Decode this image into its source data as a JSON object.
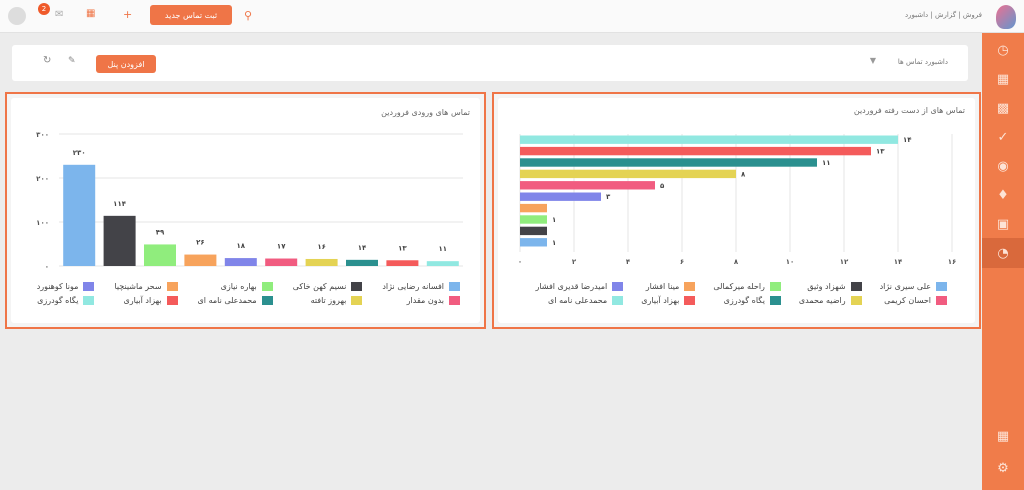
{
  "header": {
    "breadcrumb": "فروش | گزارش | داشبورد",
    "new_button": "ثبت تماس جدید",
    "notification_count": "2"
  },
  "toolbar": {
    "title": "داشبورد تماس ها",
    "add_panel": "افزودن پنل"
  },
  "sidebar": {
    "items": [
      "dashboard-icon",
      "calendar-icon",
      "contacts-icon",
      "handshake-icon",
      "globe-icon",
      "bell-icon",
      "calculator-icon",
      "reports-icon"
    ],
    "active": 7
  },
  "colors": {
    "accent": "#ef7547"
  },
  "chart_data": [
    {
      "type": "bar",
      "title": "تماس های ورودی فروردین",
      "ylim": [
        0,
        300
      ],
      "yticks": [
        "۰",
        "۱۰۰",
        "۲۰۰",
        "۳۰۰"
      ],
      "ytick_values": [
        0,
        100,
        200,
        300
      ],
      "grid": true,
      "legend": "bottom",
      "categories": [
        "افسانه رضایی نژاد",
        "نسیم کهن خاکی",
        "بهاره نیازی",
        "سحر ماشینچیا",
        "مونا کوهنورد",
        "بدون مقدار",
        "بهروز تافته",
        "محمدعلی نامه ای",
        "بهزاد آبیاری",
        "یگاه گودرزی"
      ],
      "values": [
        230,
        114,
        49,
        26,
        18,
        17,
        16,
        14,
        13,
        11
      ],
      "labels": [
        "۲۳۰",
        "۱۱۴",
        "۴۹",
        "۲۶",
        "۱۸",
        "۱۷",
        "۱۶",
        "۱۴",
        "۱۳",
        "۱۱"
      ],
      "colors": [
        "#7cb5ec",
        "#434348",
        "#90ed7d",
        "#f7a35c",
        "#8085e9",
        "#f15c80",
        "#e4d354",
        "#2b908f",
        "#f45b5b",
        "#91e8e1"
      ]
    },
    {
      "type": "bar",
      "orientation": "horizontal",
      "title": "تماس های از دست رفته فروردین",
      "xlim": [
        0,
        16
      ],
      "xticks": [
        "۰",
        "۲",
        "۴",
        "۶",
        "۸",
        "۱۰",
        "۱۲",
        "۱۴",
        "۱۶"
      ],
      "xtick_values": [
        0,
        2,
        4,
        6,
        8,
        10,
        12,
        14,
        16
      ],
      "grid": true,
      "legend": "bottom",
      "categories": [
        "علی سیری نژاد",
        "شهزاد وثیق",
        "راحله میرکمالی",
        "مینا افشار",
        "امیدرضا قدیری افشار",
        "احسان کریمی",
        "راضیه محمدی",
        "یگاه گودرزی",
        "بهزاد آبیاری",
        "محمدعلی نامه ای"
      ],
      "values": [
        1,
        1,
        1,
        1,
        3,
        5,
        8,
        11,
        13,
        14
      ],
      "labels": [
        "۱",
        "",
        "۱",
        "",
        "۳",
        "۵",
        "۸",
        "۱۱",
        "۱۳",
        "۱۴"
      ],
      "colors": [
        "#7cb5ec",
        "#434348",
        "#90ed7d",
        "#f7a35c",
        "#8085e9",
        "#f15c80",
        "#e4d354",
        "#2b908f",
        "#f45b5b",
        "#91e8e1"
      ]
    }
  ]
}
